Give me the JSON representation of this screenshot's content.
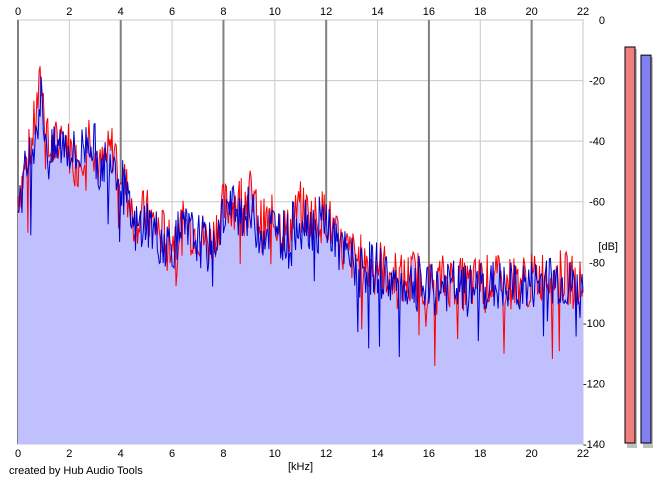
{
  "window": {
    "credit": "created by Hub Audio Tools"
  },
  "chart_data": {
    "type": "area",
    "title": "",
    "xlabel": "[kHz]",
    "ylabel": "[dB]",
    "xlim": [
      0,
      22
    ],
    "ylim": [
      -140,
      0
    ],
    "x_ticks": [
      0,
      2,
      4,
      6,
      8,
      10,
      12,
      14,
      16,
      18,
      20,
      22
    ],
    "y_ticks": [
      0,
      -20,
      -40,
      -60,
      -80,
      -100,
      -120,
      -140
    ],
    "grid": true,
    "colors": {
      "fill": "#c0c0ff",
      "red_series": "#ff0000",
      "blue_series": "#0000cc",
      "major_grid": "#808080",
      "minor_grid": "#c8c8c8"
    },
    "series": [
      {
        "color": "#ff0000",
        "x": [
          0,
          0.5,
          0.9,
          1.2,
          1.8,
          2.3,
          2.8,
          3.2,
          3.7,
          4.0,
          4.5,
          5.0,
          5.5,
          6.0,
          6.5,
          7.0,
          7.5,
          8.0,
          8.5,
          9.0,
          9.5,
          10.0,
          10.5,
          11.0,
          11.5,
          12.0,
          12.5,
          13.0,
          13.5,
          14.0,
          14.5,
          15.0,
          15.5,
          16.0,
          16.5,
          17.0,
          17.5,
          18.0,
          18.5,
          19.0,
          19.5,
          20.0,
          20.5,
          21.0,
          21.5,
          22.0
        ],
        "values": [
          -58,
          -42,
          -20,
          -44,
          -38,
          -48,
          -36,
          -50,
          -42,
          -48,
          -66,
          -64,
          -70,
          -72,
          -68,
          -70,
          -74,
          -62,
          -60,
          -57,
          -68,
          -66,
          -70,
          -62,
          -66,
          -64,
          -75,
          -78,
          -80,
          -80,
          -84,
          -86,
          -84,
          -88,
          -86,
          -86,
          -88,
          -86,
          -86,
          -87,
          -86,
          -86,
          -84,
          -84,
          -86,
          -88
        ]
      },
      {
        "color": "#0000cc",
        "x": [
          0,
          0.5,
          0.9,
          1.2,
          1.8,
          2.3,
          2.8,
          3.2,
          3.7,
          4.0,
          4.5,
          5.0,
          5.5,
          6.0,
          6.5,
          7.0,
          7.5,
          8.0,
          8.5,
          9.0,
          9.5,
          10.0,
          10.5,
          11.0,
          11.5,
          12.0,
          12.5,
          13.0,
          13.5,
          14.0,
          14.5,
          15.0,
          15.5,
          16.0,
          16.5,
          17.0,
          17.5,
          18.0,
          18.5,
          19.0,
          19.5,
          20.0,
          20.5,
          21.0,
          21.5,
          22.0
        ],
        "values": [
          -60,
          -44,
          -26,
          -46,
          -40,
          -46,
          -38,
          -48,
          -44,
          -52,
          -70,
          -66,
          -72,
          -74,
          -70,
          -72,
          -76,
          -64,
          -62,
          -64,
          -70,
          -68,
          -72,
          -64,
          -68,
          -66,
          -76,
          -80,
          -82,
          -82,
          -86,
          -88,
          -86,
          -90,
          -88,
          -88,
          -90,
          -88,
          -88,
          -89,
          -88,
          -88,
          -86,
          -86,
          -88,
          -90
        ]
      }
    ],
    "meters": [
      {
        "color": "#f08080",
        "level": 0.973
      },
      {
        "color": "#8080f0",
        "level": 0.953
      }
    ]
  }
}
